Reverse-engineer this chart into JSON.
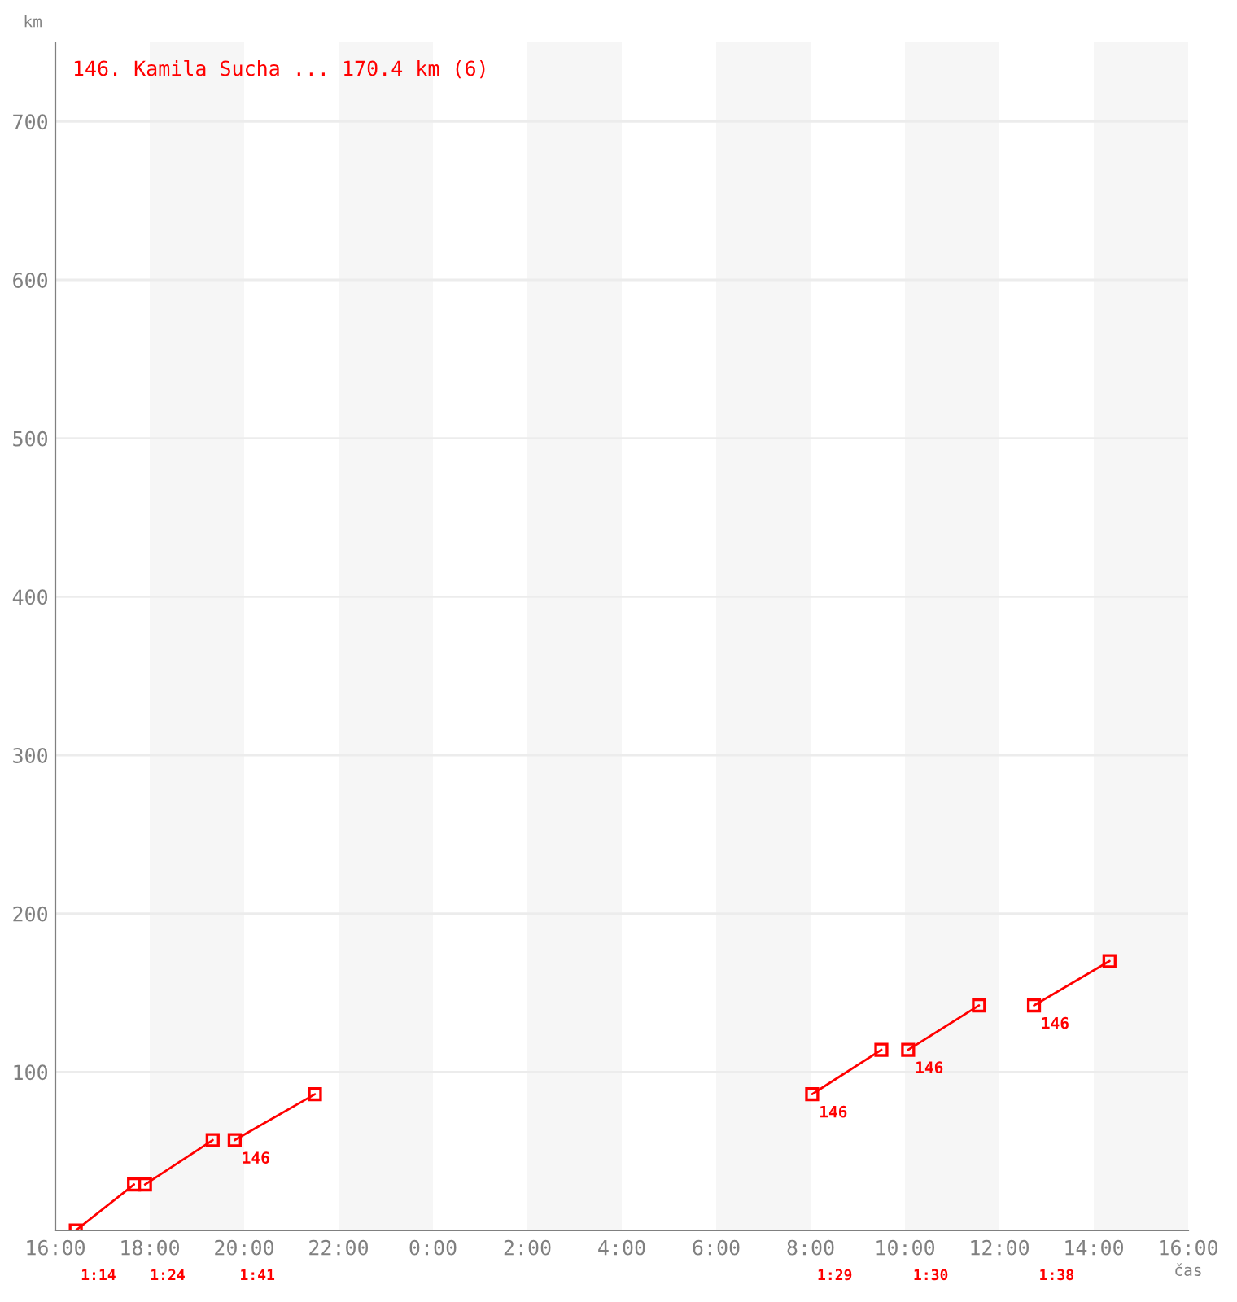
{
  "chart_data": {
    "type": "line",
    "title": "146. Kamila Sucha ... 170.4 km (6)",
    "xlabel": "čas",
    "ylabel": "km",
    "series": [
      {
        "color": "#ff0000",
        "x": [
          "2000-01-01T16:26",
          "2000-01-01T17:40"
        ],
        "values": [
          0,
          29
        ]
      },
      {
        "color": "#ff0000",
        "x": [
          "2000-01-01T17:54",
          "2000-01-01T19:20"
        ],
        "values": [
          29,
          57
        ]
      },
      {
        "color": "#ff0000",
        "x": [
          "2000-01-01T19:48",
          "2000-01-01T21:30"
        ],
        "values": [
          57,
          86
        ]
      },
      {
        "color": "#ff0000",
        "x": [
          "2000-01-02T08:02",
          "2000-01-02T09:30"
        ],
        "values": [
          86,
          114
        ]
      },
      {
        "color": "#ff0000",
        "x": [
          "2000-01-02T10:04",
          "2000-01-02T11:34"
        ],
        "values": [
          114,
          142
        ]
      },
      {
        "color": "#ff0000",
        "x": [
          "2000-01-02T12:44",
          "2000-01-02T14:20"
        ],
        "values": [
          142,
          170
        ]
      }
    ],
    "marker": "square",
    "line_style": "solid",
    "xlim": [
      "2000-01-01T16:00",
      "2000-01-02T16:00"
    ],
    "ylim": [
      0,
      750
    ],
    "xticks": [
      {
        "value": "2000-01-01T16:00",
        "label": "16:00"
      },
      {
        "value": "2000-01-01T18:00",
        "label": "18:00"
      },
      {
        "value": "2000-01-01T20:00",
        "label": "20:00"
      },
      {
        "value": "2000-01-01T22:00",
        "label": "22:00"
      },
      {
        "value": "2000-01-02T00:00",
        "label": "0:00"
      },
      {
        "value": "2000-01-02T02:00",
        "label": "2:00"
      },
      {
        "value": "2000-01-02T04:00",
        "label": "4:00"
      },
      {
        "value": "2000-01-02T06:00",
        "label": "6:00"
      },
      {
        "value": "2000-01-02T08:00",
        "label": "8:00"
      },
      {
        "value": "2000-01-02T10:00",
        "label": "10:00"
      },
      {
        "value": "2000-01-02T12:00",
        "label": "12:00"
      },
      {
        "value": "2000-01-02T14:00",
        "label": "14:00"
      },
      {
        "value": "2000-01-02T16:00",
        "label": "16:00"
      }
    ],
    "yticks": [
      100,
      200,
      300,
      400,
      500,
      600,
      700
    ],
    "grid": "y",
    "bands": [
      {
        "axis": "x",
        "from": "2000-01-01T18:00",
        "to": "2000-01-01T20:00",
        "color": "#f6f6f6"
      },
      {
        "axis": "x",
        "from": "2000-01-01T22:00",
        "to": "2000-01-02T00:00",
        "color": "#f6f6f6"
      },
      {
        "axis": "x",
        "from": "2000-01-02T02:00",
        "to": "2000-01-02T04:00",
        "color": "#f6f6f6"
      },
      {
        "axis": "x",
        "from": "2000-01-02T06:00",
        "to": "2000-01-02T08:00",
        "color": "#f6f6f6"
      },
      {
        "axis": "x",
        "from": "2000-01-02T10:00",
        "to": "2000-01-02T12:00",
        "color": "#f6f6f6"
      },
      {
        "axis": "x",
        "from": "2000-01-02T14:00",
        "to": "2000-01-02T16:00",
        "color": "#f6f6f6"
      }
    ],
    "annotations": [
      {
        "text": "146",
        "x": "2000-01-01T19:48",
        "y": 57
      },
      {
        "text": "146",
        "x": "2000-01-02T08:02",
        "y": 86
      },
      {
        "text": "146",
        "x": "2000-01-02T10:04",
        "y": 114
      },
      {
        "text": "146",
        "x": "2000-01-02T12:44",
        "y": 142
      },
      "1:14",
      "1:24",
      "1:41",
      "1:29",
      "1:30",
      "1:38"
    ]
  }
}
